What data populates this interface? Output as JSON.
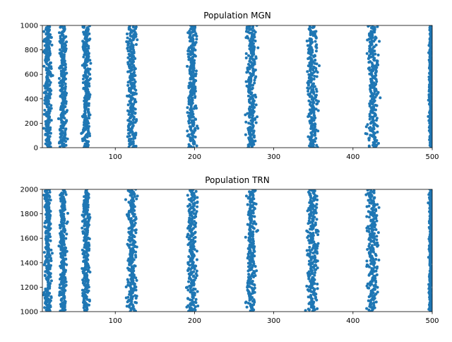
{
  "chart_data": [
    {
      "type": "scatter",
      "title": "Population MGN",
      "xlabel": "",
      "ylabel": "",
      "xlim": [
        8,
        500
      ],
      "ylim": [
        0,
        1000
      ],
      "xticks": [
        100,
        200,
        300,
        400,
        500
      ],
      "yticks": [
        0,
        200,
        400,
        600,
        800,
        1000
      ],
      "xtick_labels": [
        "100",
        "200",
        "300",
        "400",
        "500"
      ],
      "ytick_labels": [
        "0",
        "200",
        "400",
        "600",
        "800",
        "1000"
      ],
      "grid": false,
      "marker_color": "#1f77b4",
      "marker_size": 4,
      "neuron_count": 1000,
      "spike_bands": [
        {
          "center": 15,
          "width": 12
        },
        {
          "center": 34,
          "width": 12
        },
        {
          "center": 63,
          "width": 13
        },
        {
          "center": 121,
          "width": 15
        },
        {
          "center": 197,
          "width": 16
        },
        {
          "center": 272,
          "width": 16
        },
        {
          "center": 349,
          "width": 18
        },
        {
          "center": 425,
          "width": 18
        },
        {
          "center": 498,
          "width": 6
        }
      ]
    },
    {
      "type": "scatter",
      "title": "Population TRN",
      "xlabel": "",
      "ylabel": "",
      "xlim": [
        8,
        500
      ],
      "ylim": [
        1000,
        2000
      ],
      "xticks": [
        100,
        200,
        300,
        400,
        500
      ],
      "yticks": [
        1000,
        1200,
        1400,
        1600,
        1800,
        2000
      ],
      "xtick_labels": [
        "100",
        "200",
        "300",
        "400",
        "500"
      ],
      "ytick_labels": [
        "1000",
        "1200",
        "1400",
        "1600",
        "1800",
        "2000"
      ],
      "grid": false,
      "marker_color": "#1f77b4",
      "marker_size": 4,
      "neuron_count": 1000,
      "spike_bands": [
        {
          "center": 15,
          "width": 12
        },
        {
          "center": 34,
          "width": 12
        },
        {
          "center": 63,
          "width": 13
        },
        {
          "center": 121,
          "width": 15
        },
        {
          "center": 197,
          "width": 16
        },
        {
          "center": 272,
          "width": 16
        },
        {
          "center": 349,
          "width": 18
        },
        {
          "center": 425,
          "width": 18
        },
        {
          "center": 498,
          "width": 6
        }
      ]
    }
  ]
}
